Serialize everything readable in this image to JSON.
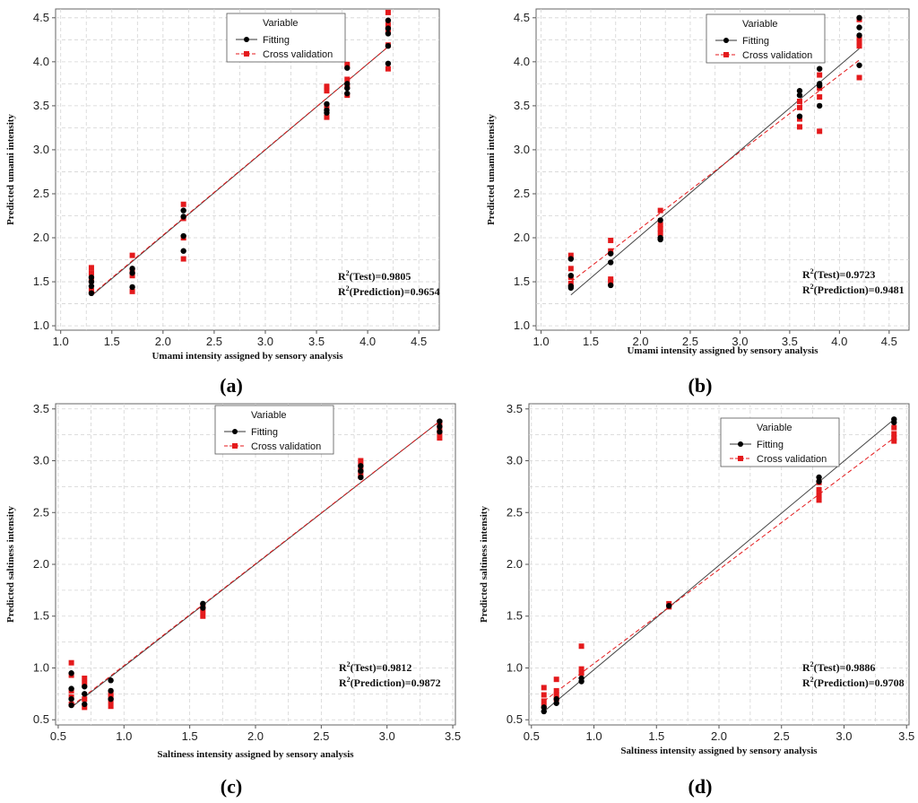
{
  "chart_data": [
    {
      "type": "scatter",
      "panel_label": "(a)",
      "xlabel": "Umami intensity assigned by sensory analysis",
      "ylabel": "Predicted umami intensity",
      "xlim": [
        0.95,
        4.7
      ],
      "ylim": [
        0.95,
        4.6
      ],
      "xticks": [
        1.0,
        1.5,
        2.0,
        2.5,
        3.0,
        3.5,
        4.0,
        4.5
      ],
      "yticks": [
        1.0,
        1.5,
        2.0,
        2.5,
        3.0,
        3.5,
        4.0,
        4.5
      ],
      "tick_labels_x": [
        "1.0",
        "1.5",
        "2.0",
        "2.5",
        "3.0",
        "3.5",
        "4.0",
        "4.5"
      ],
      "tick_labels_y": [
        "1.0",
        "1.5",
        "2.0",
        "2.5",
        "3.0",
        "3.5",
        "4.0",
        "4.5"
      ],
      "grid": true,
      "legend_title": "Variable",
      "legend_position": "top-center",
      "series": [
        {
          "name": "Fitting",
          "color": "#000000",
          "marker": "circle",
          "line_style": "solid",
          "line": [
            [
              1.3,
              1.34
            ],
            [
              4.2,
              4.17
            ]
          ],
          "x": [
            1.3,
            1.3,
            1.3,
            1.3,
            1.7,
            1.7,
            1.7,
            2.2,
            2.2,
            2.2,
            2.2,
            3.6,
            3.6,
            3.6,
            3.8,
            3.8,
            3.8,
            3.8,
            4.2,
            4.2,
            4.2,
            4.2,
            4.2
          ],
          "y": [
            1.37,
            1.45,
            1.5,
            1.55,
            1.44,
            1.6,
            1.65,
            1.85,
            2.02,
            2.24,
            2.31,
            3.42,
            3.45,
            3.52,
            3.64,
            3.7,
            3.75,
            3.93,
            3.98,
            4.18,
            4.32,
            4.38,
            4.47
          ]
        },
        {
          "name": "Cross validation",
          "color": "#e41a1c",
          "marker": "square",
          "line_style": "dashed",
          "line": [
            [
              1.3,
              1.35
            ],
            [
              4.2,
              4.17
            ]
          ],
          "x": [
            1.3,
            1.3,
            1.3,
            1.3,
            1.7,
            1.7,
            1.7,
            1.7,
            2.2,
            2.2,
            2.2,
            2.2,
            3.6,
            3.6,
            3.6,
            3.6,
            3.8,
            3.8,
            3.8,
            3.8,
            4.2,
            4.2,
            4.2,
            4.2,
            4.2
          ],
          "y": [
            1.4,
            1.51,
            1.6,
            1.66,
            1.39,
            1.57,
            1.62,
            1.8,
            1.76,
            2.0,
            2.22,
            2.38,
            3.37,
            3.5,
            3.67,
            3.72,
            3.62,
            3.72,
            3.8,
            3.97,
            3.92,
            4.19,
            4.35,
            4.42,
            4.56
          ]
        }
      ],
      "annotations": {
        "r2_test": "=0.9805",
        "r2_prediction": "=0.9654"
      }
    },
    {
      "type": "scatter",
      "panel_label": "(b)",
      "xlabel": "Umami intensity assigned by sensory analysis",
      "ylabel": "Predicted umami intensity",
      "xlim": [
        0.95,
        4.7
      ],
      "ylim": [
        0.95,
        4.6
      ],
      "xticks": [
        1.0,
        1.5,
        2.0,
        2.5,
        3.0,
        3.5,
        4.0,
        4.5
      ],
      "yticks": [
        1.0,
        1.5,
        2.0,
        2.5,
        3.0,
        3.5,
        4.0,
        4.5
      ],
      "tick_labels_x": [
        "1.0",
        "1.5",
        "2.0",
        "2.5",
        "3.0",
        "3.5",
        "4.0",
        "4.5"
      ],
      "tick_labels_y": [
        "1.0",
        "1.5",
        "2.0",
        "2.5",
        "3.0",
        "3.5",
        "4.0",
        "4.5"
      ],
      "grid": true,
      "legend_title": "Variable",
      "legend_position": "top-center",
      "series": [
        {
          "name": "Fitting",
          "color": "#000000",
          "marker": "circle",
          "line_style": "solid",
          "line": [
            [
              1.3,
              1.35
            ],
            [
              4.2,
              4.15
            ]
          ],
          "x": [
            1.3,
            1.3,
            1.3,
            1.3,
            1.7,
            1.7,
            1.7,
            2.2,
            2.2,
            2.2,
            3.6,
            3.6,
            3.6,
            3.8,
            3.8,
            3.8,
            3.8,
            4.2,
            4.2,
            4.2,
            4.2
          ],
          "y": [
            1.43,
            1.45,
            1.57,
            1.76,
            1.46,
            1.72,
            1.82,
            1.98,
            2.0,
            2.2,
            3.38,
            3.62,
            3.67,
            3.5,
            3.73,
            3.75,
            3.92,
            3.96,
            4.3,
            4.39,
            4.5
          ]
        },
        {
          "name": "Cross validation",
          "color": "#e41a1c",
          "marker": "square",
          "line_style": "dashed",
          "line": [
            [
              1.3,
              1.5
            ],
            [
              4.2,
              4.02
            ]
          ],
          "x": [
            1.3,
            1.3,
            1.3,
            1.3,
            1.7,
            1.7,
            1.7,
            1.7,
            2.2,
            2.2,
            2.2,
            2.2,
            3.6,
            3.6,
            3.6,
            3.6,
            3.8,
            3.8,
            3.8,
            3.8,
            4.2,
            4.2,
            4.2,
            4.2,
            4.2
          ],
          "y": [
            1.48,
            1.55,
            1.65,
            1.8,
            1.5,
            1.53,
            1.85,
            1.97,
            2.05,
            2.1,
            2.15,
            2.31,
            3.26,
            3.35,
            3.48,
            3.55,
            3.21,
            3.6,
            3.7,
            3.85,
            3.82,
            4.18,
            4.22,
            4.27,
            4.48
          ]
        }
      ],
      "annotations": {
        "r2_test": "=0.9723",
        "r2_prediction": "=0.9481"
      }
    },
    {
      "type": "scatter",
      "panel_label": "(c)",
      "xlabel": "Saltiness intensity assigned by sensory analysis",
      "ylabel": "Predicted saltiness intensity",
      "xlim": [
        0.48,
        3.52
      ],
      "ylim": [
        0.45,
        3.55
      ],
      "xticks": [
        0.5,
        1.0,
        1.5,
        2.0,
        2.5,
        3.0,
        3.5
      ],
      "yticks": [
        0.5,
        1.0,
        1.5,
        2.0,
        2.5,
        3.0,
        3.5
      ],
      "tick_labels_x": [
        "0.5",
        "1.0",
        "1.5",
        "2.0",
        "2.5",
        "3.0",
        "3.5"
      ],
      "tick_labels_y": [
        "0.5",
        "1.0",
        "1.5",
        "2.0",
        "2.5",
        "3.0",
        "3.5"
      ],
      "grid": true,
      "legend_title": "Variable",
      "legend_position": "top-center",
      "series": [
        {
          "name": "Fitting",
          "color": "#000000",
          "marker": "circle",
          "line_style": "solid",
          "line": [
            [
              0.6,
              0.62
            ],
            [
              3.4,
              3.38
            ]
          ],
          "x": [
            0.6,
            0.6,
            0.6,
            0.6,
            0.7,
            0.7,
            0.7,
            0.9,
            0.9,
            0.9,
            1.6,
            1.6,
            2.8,
            2.8,
            2.8,
            3.4,
            3.4,
            3.4
          ],
          "y": [
            0.64,
            0.7,
            0.8,
            0.95,
            0.65,
            0.75,
            0.82,
            0.7,
            0.78,
            0.88,
            1.58,
            1.62,
            2.84,
            2.9,
            2.95,
            3.28,
            3.33,
            3.38
          ]
        },
        {
          "name": "Cross validation",
          "color": "#e41a1c",
          "marker": "square",
          "line_style": "dashed",
          "line": [
            [
              0.6,
              0.63
            ],
            [
              3.4,
              3.38
            ]
          ],
          "x": [
            0.6,
            0.6,
            0.6,
            0.6,
            0.6,
            0.7,
            0.7,
            0.7,
            0.7,
            0.9,
            0.9,
            0.9,
            0.9,
            1.6,
            1.6,
            1.6,
            2.8,
            2.8,
            2.8,
            2.8,
            3.4,
            3.4,
            3.4,
            3.4
          ],
          "y": [
            0.65,
            0.72,
            0.78,
            0.93,
            1.05,
            0.62,
            0.7,
            0.85,
            0.9,
            0.63,
            0.68,
            0.72,
            0.75,
            1.5,
            1.55,
            1.6,
            2.85,
            2.9,
            2.95,
            3.0,
            3.22,
            3.27,
            3.32,
            3.37
          ]
        }
      ],
      "annotations": {
        "r2_test": "=0.9812",
        "r2_prediction": "=0.9872"
      }
    },
    {
      "type": "scatter",
      "panel_label": "(d)",
      "xlabel": "Saltiness intensity assigned by sensory analysis",
      "ylabel": "Predicted saltiness intensity",
      "xlim": [
        0.48,
        3.52
      ],
      "ylim": [
        0.45,
        3.55
      ],
      "xticks": [
        0.5,
        1.0,
        1.5,
        2.0,
        2.5,
        3.0,
        3.5
      ],
      "yticks": [
        0.5,
        1.0,
        1.5,
        2.0,
        2.5,
        3.0,
        3.5
      ],
      "tick_labels_x": [
        "0.5",
        "1.0",
        "1.5",
        "2.0",
        "2.5",
        "3.0",
        "3.5"
      ],
      "tick_labels_y": [
        "0.5",
        "1.0",
        "1.5",
        "2.0",
        "2.5",
        "3.0",
        "3.5"
      ],
      "grid": true,
      "legend_title": "Variable",
      "legend_position": "top-center",
      "series": [
        {
          "name": "Fitting",
          "color": "#000000",
          "marker": "circle",
          "line_style": "solid",
          "line": [
            [
              0.6,
              0.58
            ],
            [
              3.4,
              3.4
            ]
          ],
          "x": [
            0.6,
            0.6,
            0.7,
            0.7,
            0.9,
            0.9,
            1.6,
            2.8,
            2.8,
            3.4,
            3.4
          ],
          "y": [
            0.58,
            0.62,
            0.66,
            0.7,
            0.87,
            0.9,
            1.6,
            2.8,
            2.84,
            3.37,
            3.4
          ]
        },
        {
          "name": "Cross validation",
          "color": "#e41a1c",
          "marker": "square",
          "line_style": "dashed",
          "line": [
            [
              0.6,
              0.68
            ],
            [
              3.4,
              3.22
            ]
          ],
          "x": [
            0.6,
            0.6,
            0.6,
            0.6,
            0.7,
            0.7,
            0.7,
            0.7,
            0.9,
            0.9,
            0.9,
            1.6,
            1.6,
            2.8,
            2.8,
            2.8,
            2.8,
            3.4,
            3.4,
            3.4,
            3.4
          ],
          "y": [
            0.63,
            0.68,
            0.74,
            0.81,
            0.7,
            0.74,
            0.78,
            0.89,
            0.95,
            0.99,
            1.21,
            1.59,
            1.62,
            2.62,
            2.67,
            2.72,
            2.79,
            3.19,
            3.22,
            3.26,
            3.32
          ]
        }
      ],
      "annotations": {
        "r2_test": "=0.9886",
        "r2_prediction": "=0.9708"
      }
    }
  ],
  "text": {
    "legend_title": "Variable",
    "legend_fitting": "Fitting",
    "legend_cv": "Cross validation",
    "r2_symbol": "R",
    "r2_exp": "2",
    "r2_test_suffix": "(Test)",
    "r2_pred_suffix": "(Prediction)"
  }
}
